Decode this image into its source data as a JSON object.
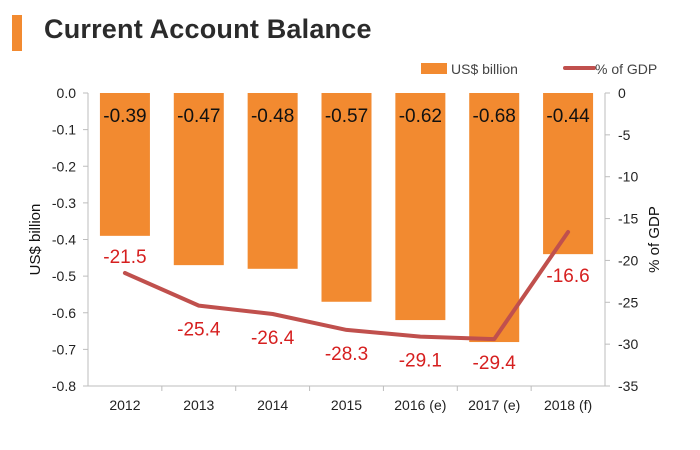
{
  "page": {
    "title": "Current Account Balance"
  },
  "chart_data": {
    "type": "bar+line",
    "categories": [
      "2012",
      "2013",
      "2014",
      "2015",
      "2016 (e)",
      "2017 (e)",
      "2018 (f)"
    ],
    "series": [
      {
        "name": "US$ billion",
        "type": "bar",
        "axis": "left",
        "values": [
          -0.39,
          -0.47,
          -0.48,
          -0.57,
          -0.62,
          -0.68,
          -0.44
        ],
        "labels": [
          "-0.39",
          "-0.47",
          "-0.48",
          "-0.57",
          "-0.62",
          "-0.68",
          "-0.44"
        ],
        "color": "#f28a30"
      },
      {
        "name": "% of GDP",
        "type": "line",
        "axis": "right",
        "values": [
          -21.5,
          -25.4,
          -26.4,
          -28.3,
          -29.1,
          -29.4,
          -16.6
        ],
        "labels": [
          "-21.5",
          "-25.4",
          "-26.4",
          "-28.3",
          "-29.1",
          "-29.4",
          "-16.6"
        ],
        "color": "#c0504d",
        "label_color": "#d61f1f"
      }
    ],
    "ylabel": "US$ billion",
    "y2label": "% of GDP",
    "ylim": [
      -0.8,
      0.0
    ],
    "y2lim": [
      -35,
      0
    ],
    "yticks": [
      "0.0",
      "-0.1",
      "-0.2",
      "-0.3",
      "-0.4",
      "-0.5",
      "-0.6",
      "-0.7",
      "-0.8"
    ],
    "y2ticks": [
      "0",
      "-5",
      "-10",
      "-15",
      "-20",
      "-25",
      "-30",
      "-35"
    ],
    "legend_position": "top-right",
    "grid": false
  }
}
